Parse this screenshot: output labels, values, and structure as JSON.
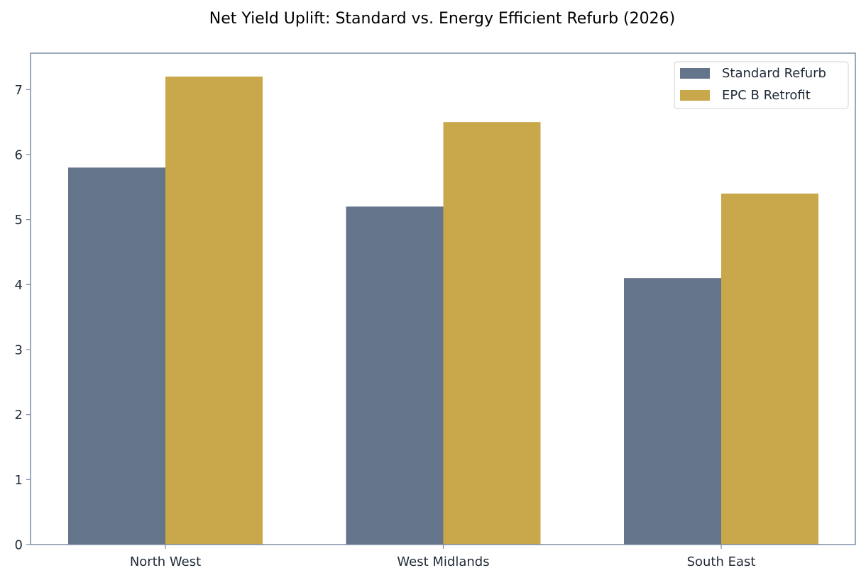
{
  "chart_data": {
    "type": "bar",
    "title": "Net Yield Uplift: Standard vs. Energy Efficient Refurb (2026)",
    "xlabel": "",
    "ylabel": "",
    "categories": [
      "North West",
      "West Midlands",
      "South East"
    ],
    "series": [
      {
        "name": "Standard Refurb",
        "values": [
          5.8,
          5.2,
          4.1
        ],
        "color": "#64748b"
      },
      {
        "name": "EPC B Retrofit",
        "values": [
          7.2,
          6.5,
          5.4
        ],
        "color": "#c9a84c"
      }
    ],
    "ylim": [
      0,
      7.56
    ],
    "yticks": [
      0,
      1,
      2,
      3,
      4,
      5,
      6,
      7
    ],
    "grid": false,
    "legend_position": "top-right",
    "axis_color": "#7a8ca3"
  }
}
